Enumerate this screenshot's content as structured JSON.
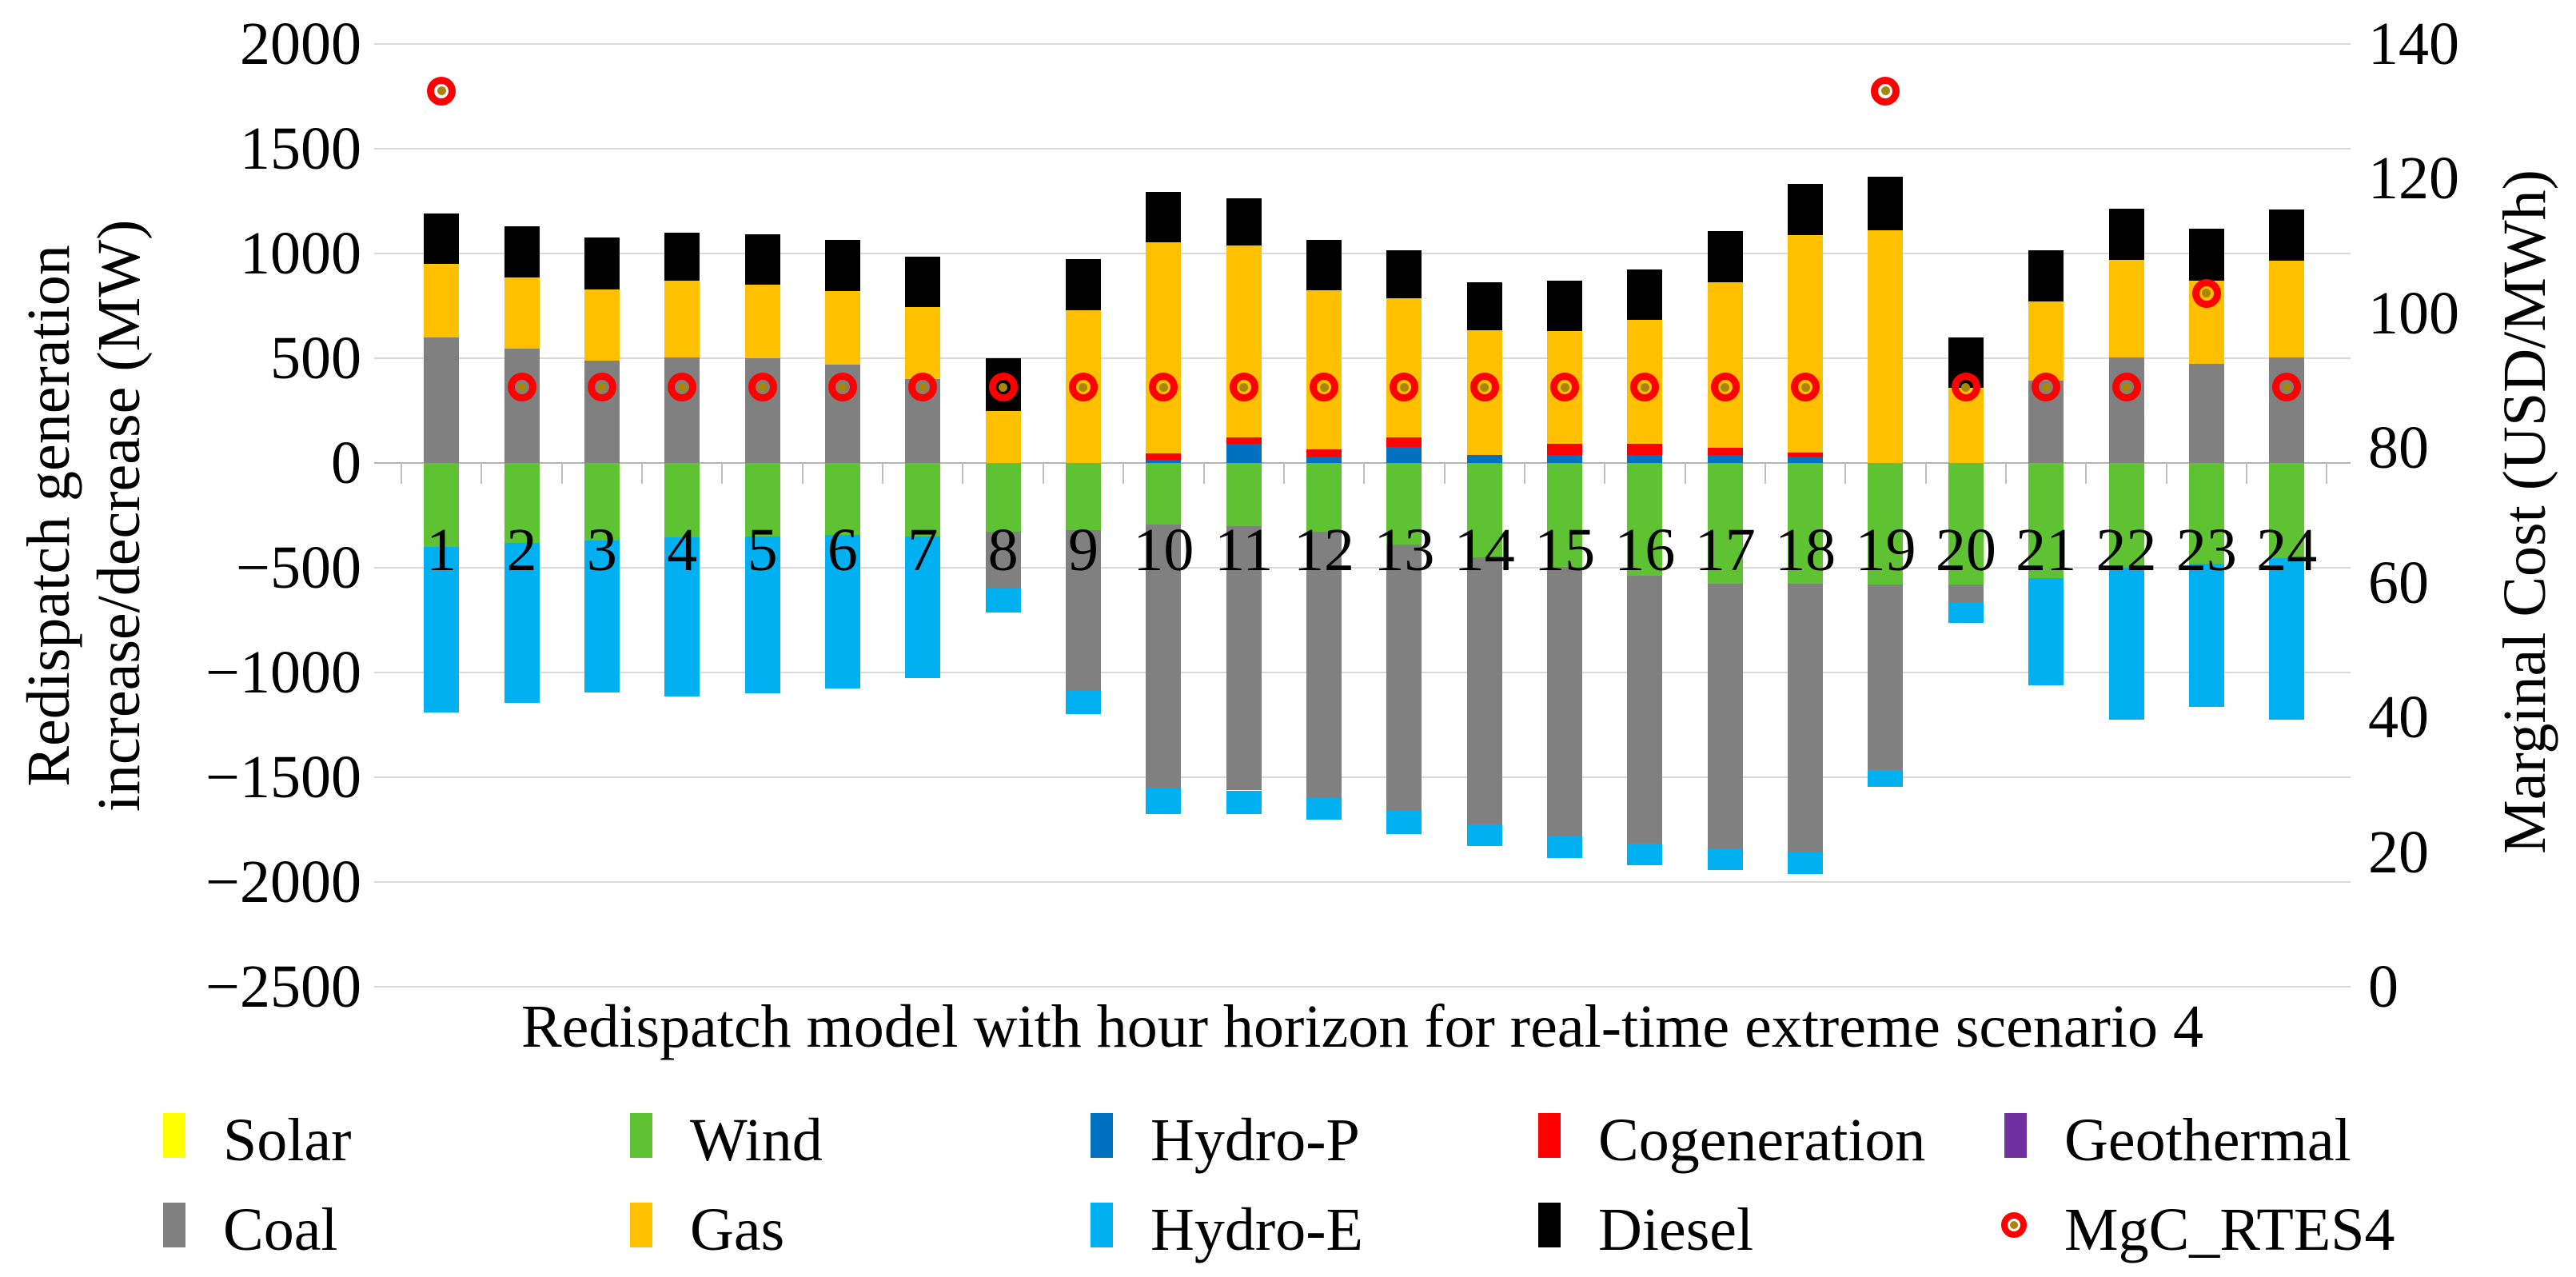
{
  "chart_data": {
    "type": "bar",
    "subtype": "stacked-column-with-marker-series",
    "title": "Redispatch model with hour horizon for real-time extreme scenario 4",
    "left_axis": {
      "label_line1": "Redispatch generation",
      "label_line2": "increase/decrease (MW)",
      "ticks": [
        "2000",
        "1500",
        "1000",
        "500",
        "0",
        "−500",
        "−1000",
        "−1500",
        "−2000",
        "−2500"
      ],
      "tick_values": [
        2000,
        1500,
        1000,
        500,
        0,
        -500,
        -1000,
        -1500,
        -2000,
        -2500
      ],
      "ylim": [
        -2500,
        2000
      ],
      "grid": true
    },
    "right_axis": {
      "label": "Marginal Cost (USD/MWh)",
      "ticks": [
        "140",
        "120",
        "100",
        "80",
        "60",
        "40",
        "20",
        "0"
      ],
      "tick_values": [
        140,
        120,
        100,
        80,
        60,
        40,
        20,
        0
      ],
      "ylim": [
        0,
        140
      ]
    },
    "categories": [
      "1",
      "2",
      "3",
      "4",
      "5",
      "6",
      "7",
      "8",
      "9",
      "10",
      "11",
      "12",
      "13",
      "14",
      "15",
      "16",
      "17",
      "18",
      "19",
      "20",
      "21",
      "22",
      "23",
      "24"
    ],
    "series": [
      {
        "name": "Solar",
        "color": "#ffff00",
        "values": [
          0,
          0,
          0,
          0,
          0,
          0,
          0,
          0,
          0,
          0,
          0,
          0,
          0,
          0,
          0,
          0,
          0,
          0,
          0,
          0,
          0,
          0,
          0,
          0
        ]
      },
      {
        "name": "Wind",
        "color": "#5ec233",
        "values": [
          -400,
          -380,
          -370,
          -355,
          -350,
          -345,
          -350,
          -330,
          -320,
          -295,
          -300,
          -330,
          -390,
          -450,
          -495,
          -540,
          -578,
          -578,
          -582,
          -580,
          -550,
          -500,
          -480,
          -455
        ]
      },
      {
        "name": "Hydro-P",
        "color": "#0070c0",
        "values": [
          0,
          0,
          0,
          0,
          0,
          0,
          0,
          0,
          0,
          15,
          90,
          32,
          76,
          38,
          38,
          38,
          38,
          29,
          0,
          0,
          0,
          0,
          0,
          0
        ]
      },
      {
        "name": "Cogeneration",
        "color": "#ff0000",
        "values": [
          0,
          0,
          0,
          0,
          0,
          0,
          0,
          0,
          0,
          30,
          32,
          33,
          46,
          0,
          53,
          52,
          35,
          22,
          0,
          0,
          0,
          0,
          0,
          0
        ]
      },
      {
        "name": "Geothermal",
        "color": "#7030a0",
        "values": [
          0,
          0,
          0,
          0,
          0,
          0,
          0,
          0,
          0,
          0,
          0,
          0,
          0,
          0,
          0,
          0,
          0,
          0,
          0,
          0,
          0,
          0,
          0,
          0
        ]
      },
      {
        "name": "Coal",
        "color": "#808080",
        "values": [
          600,
          545,
          490,
          505,
          500,
          470,
          400,
          -270,
          -767,
          -1260,
          -1263,
          -1267,
          -1268,
          -1276,
          -1285,
          -1276,
          -1262,
          -1280,
          -885,
          -85,
          395,
          505,
          475,
          505
        ]
      },
      {
        "name": "Gas",
        "color": "#ffc000",
        "values": [
          350,
          340,
          340,
          365,
          350,
          350,
          345,
          250,
          730,
          1010,
          915,
          760,
          665,
          595,
          540,
          595,
          790,
          1035,
          1110,
          360,
          375,
          465,
          395,
          460
        ]
      },
      {
        "name": "Hydro-E",
        "color": "#00b0f0",
        "values": [
          -790,
          -765,
          -725,
          -760,
          -750,
          -730,
          -675,
          -112,
          -113,
          -120,
          -113,
          -104,
          -113,
          -104,
          -104,
          -104,
          -104,
          -104,
          -78,
          -100,
          -510,
          -725,
          -685,
          -770
        ]
      },
      {
        "name": "Diesel",
        "color": "#000000",
        "values": [
          240,
          245,
          245,
          230,
          240,
          245,
          240,
          250,
          245,
          240,
          225,
          240,
          230,
          230,
          240,
          240,
          245,
          245,
          255,
          240,
          245,
          245,
          250,
          245
        ]
      }
    ],
    "marker_series": {
      "name": "MgC_RTES4",
      "ring_color": "#ff0000",
      "center_color": "#a8860b",
      "values": [
        133,
        89,
        89,
        89,
        89,
        89,
        89,
        89,
        89,
        89,
        89,
        89,
        89,
        89,
        89,
        89,
        89,
        89,
        133,
        89,
        89,
        89,
        103,
        89
      ]
    },
    "stack_order_positive": [
      "Hydro-P",
      "Cogeneration",
      "Coal",
      "Gas",
      "Diesel"
    ],
    "stack_order_negative": [
      "Wind",
      "Coal",
      "Hydro-E"
    ],
    "legend": {
      "rows": [
        [
          {
            "label": "Solar",
            "color": "#ffff00",
            "type": "swatch"
          },
          {
            "label": "Wind",
            "color": "#5ec233",
            "type": "swatch"
          },
          {
            "label": "Hydro-P",
            "color": "#0070c0",
            "type": "swatch"
          },
          {
            "label": "Cogeneration",
            "color": "#ff0000",
            "type": "swatch"
          },
          {
            "label": "Geothermal",
            "color": "#7030a0",
            "type": "swatch"
          }
        ],
        [
          {
            "label": "Coal",
            "color": "#808080",
            "type": "swatch"
          },
          {
            "label": "Gas",
            "color": "#ffc000",
            "type": "swatch"
          },
          {
            "label": "Hydro-E",
            "color": "#00b0f0",
            "type": "swatch"
          },
          {
            "label": "Diesel",
            "color": "#000000",
            "type": "swatch"
          },
          {
            "label": "MgC_RTES4",
            "color": "#ff0000",
            "type": "marker"
          }
        ]
      ]
    },
    "colors": {
      "gridline": "#d9d9d9",
      "zero_line": "#b5b5b5",
      "tick_mark": "#bfbfbf",
      "text": "#000000"
    }
  }
}
